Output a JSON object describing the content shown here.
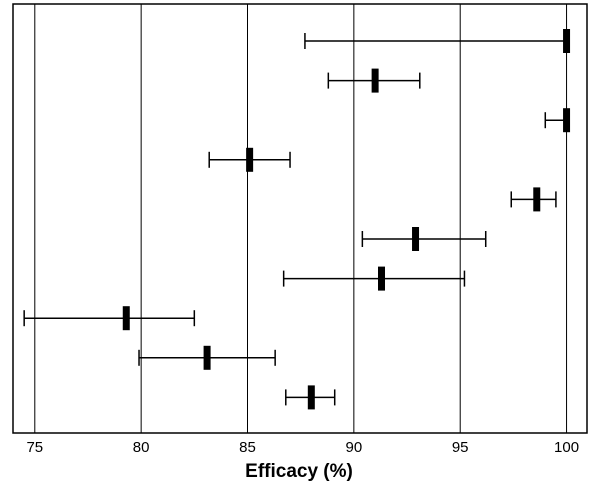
{
  "chart_data": {
    "type": "scatter",
    "subtype": "forest-plot",
    "title": "",
    "xlabel": "Efficacy (%)",
    "ylabel": "",
    "xlim": [
      74.2,
      101
    ],
    "x_ticks": [
      75,
      80,
      85,
      90,
      95,
      100
    ],
    "grid": "vertical",
    "legend": "none",
    "rows": [
      {
        "estimate": 100.0,
        "lower": 87.7,
        "upper": 100.0
      },
      {
        "estimate": 91.0,
        "lower": 88.8,
        "upper": 93.1
      },
      {
        "estimate": 100.0,
        "lower": 99.0,
        "upper": 100.0
      },
      {
        "estimate": 85.1,
        "lower": 83.2,
        "upper": 87.0
      },
      {
        "estimate": 98.6,
        "lower": 97.4,
        "upper": 99.5
      },
      {
        "estimate": 92.9,
        "lower": 90.4,
        "upper": 96.2
      },
      {
        "estimate": 91.3,
        "lower": 86.7,
        "upper": 95.2
      },
      {
        "estimate": 79.3,
        "lower": 74.5,
        "upper": 82.5
      },
      {
        "estimate": 83.1,
        "lower": 79.9,
        "upper": 86.3
      },
      {
        "estimate": 88.0,
        "lower": 86.8,
        "upper": 89.1
      }
    ],
    "colors": {
      "line": "#000000",
      "grid": "#000000",
      "background": "#ffffff"
    }
  }
}
